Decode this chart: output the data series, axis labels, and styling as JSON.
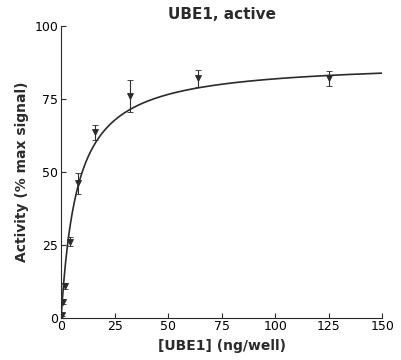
{
  "title": "UBE1, active",
  "xlabel": "[UBE1] (ng/well)",
  "ylabel": "Activity (% max signal)",
  "xlim": [
    0,
    150
  ],
  "ylim": [
    0,
    100
  ],
  "xticks": [
    0,
    25,
    50,
    75,
    100,
    125,
    150
  ],
  "yticks": [
    0,
    25,
    50,
    75,
    100
  ],
  "data_x": [
    0.5,
    1.0,
    2.0,
    4.0,
    8.0,
    16.0,
    32.0,
    64.0,
    125.0
  ],
  "data_y": [
    1.0,
    5.5,
    11.0,
    26.0,
    46.0,
    63.5,
    76.0,
    82.0,
    82.0
  ],
  "data_yerr": [
    0.5,
    0.8,
    1.0,
    1.5,
    3.5,
    2.5,
    5.5,
    3.0,
    2.5
  ],
  "curve_Vmax": 88.0,
  "curve_Km": 7.5,
  "curve_n": 1.0,
  "marker_color": "#2b2b2b",
  "line_color": "#2b2b2b",
  "background_color": "#ffffff",
  "title_fontsize": 11,
  "label_fontsize": 10,
  "tick_fontsize": 9
}
